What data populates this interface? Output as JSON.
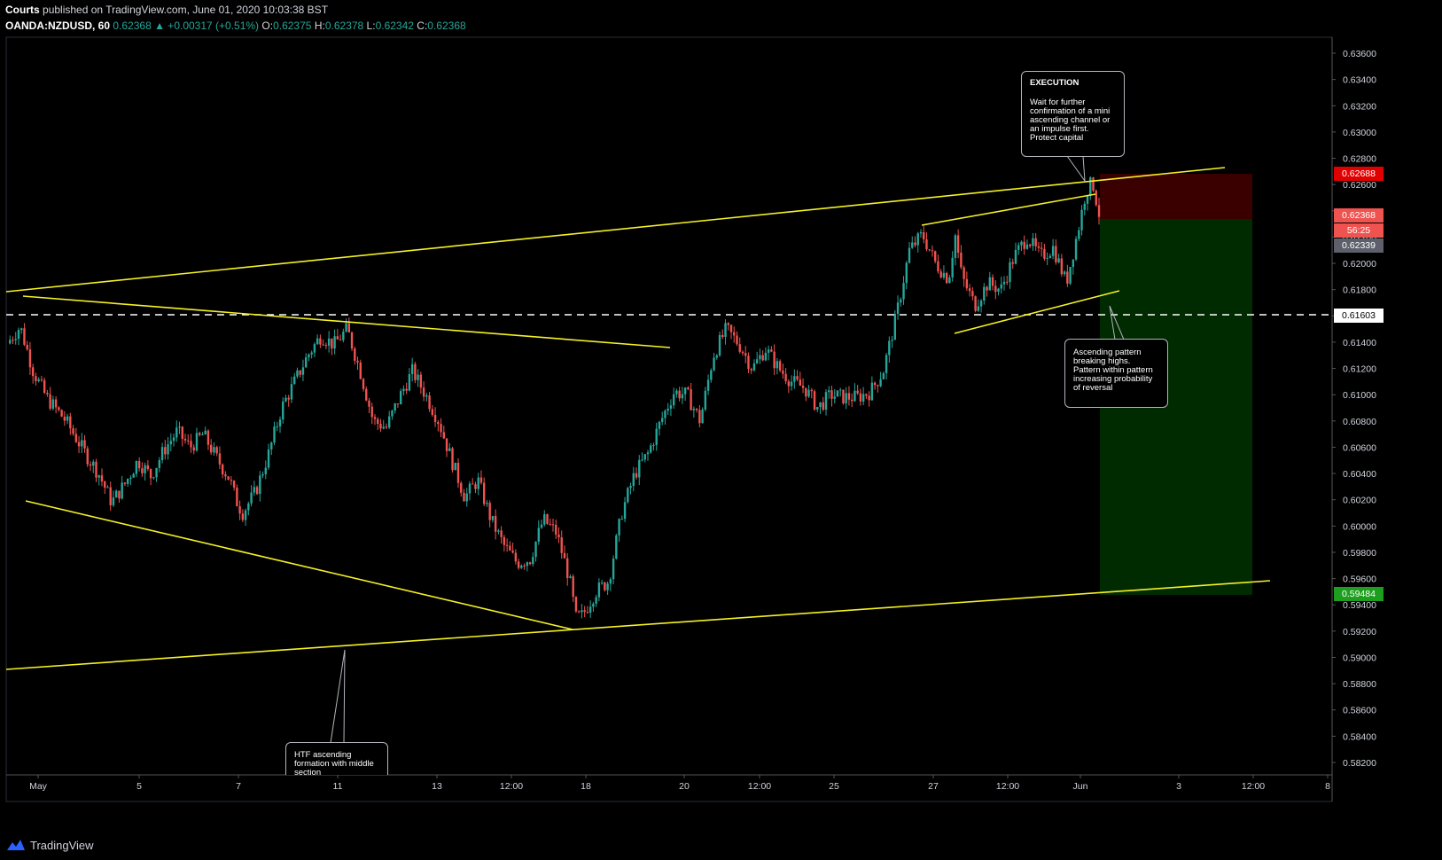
{
  "header": {
    "author": "Courts",
    "published": "published on TradingView.com, June 01, 2020 10:03:38 BST",
    "symbol": "OANDA:NZDUSD, 60",
    "last": "0.62368",
    "change": "▲ +0.00317 (+0.51%)",
    "o_label": "O:",
    "o": "0.62375",
    "h_label": "H:",
    "h": "0.62378",
    "l_label": "L:",
    "l": "0.62342",
    "c_label": "C:",
    "c": "0.62368"
  },
  "footer": {
    "brand": "TradingView"
  },
  "notes": {
    "execution_title": "EXECUTION",
    "execution_body": "Wait for further confirmation of a mini ascending channel or an impulse first. Protect capital",
    "pattern_body": "Ascending pattern breaking highs. Pattern within pattern increasing probability of reversal",
    "htf_body": "HTF ascending formation with middle section"
  },
  "price_tags": {
    "stop": "0.62688",
    "current": "0.62368",
    "countdown": "56:25",
    "prev": "0.62339",
    "level": "0.61603",
    "target": "0.59484"
  },
  "colors": {
    "up": "#26a69a",
    "down": "#ef5350",
    "trend": "#f5f125",
    "stop_zone": "#3a0000",
    "target_zone": "#002a00"
  },
  "chart_data": {
    "type": "candlestick",
    "title": "",
    "y_ticks": [
      "0.63600",
      "0.63400",
      "0.63200",
      "0.63000",
      "0.62800",
      "0.62600",
      "0.62400",
      "0.62200",
      "0.62000",
      "0.61800",
      "0.61600",
      "0.61400",
      "0.61200",
      "0.61000",
      "0.60800",
      "0.60600",
      "0.60400",
      "0.60200",
      "0.60000",
      "0.59800",
      "0.59600",
      "0.59400",
      "0.59200",
      "0.59000",
      "0.58800",
      "0.58600",
      "0.58400",
      "0.58200"
    ],
    "ylim": [
      0.5812,
      0.6375
    ],
    "x_ticks": [
      "May",
      "5",
      "7",
      "11",
      "13",
      "12:00",
      "18",
      "20",
      "12:00",
      "25",
      "27",
      "12:00",
      "Jun",
      "3",
      "12:00",
      "8"
    ],
    "close_path": [
      [
        0,
        0.6139
      ],
      [
        0.01,
        0.6152
      ],
      [
        0.02,
        0.6118
      ],
      [
        0.03,
        0.6098
      ],
      [
        0.045,
        0.608
      ],
      [
        0.06,
        0.6055
      ],
      [
        0.07,
        0.604
      ],
      [
        0.08,
        0.6018
      ],
      [
        0.09,
        0.6032
      ],
      [
        0.1,
        0.605
      ],
      [
        0.11,
        0.6038
      ],
      [
        0.12,
        0.6058
      ],
      [
        0.13,
        0.6072
      ],
      [
        0.14,
        0.606
      ],
      [
        0.15,
        0.607
      ],
      [
        0.16,
        0.6052
      ],
      [
        0.17,
        0.6036
      ],
      [
        0.175,
        0.602
      ],
      [
        0.18,
        0.601
      ],
      [
        0.19,
        0.6026
      ],
      [
        0.2,
        0.6055
      ],
      [
        0.21,
        0.609
      ],
      [
        0.22,
        0.611
      ],
      [
        0.23,
        0.613
      ],
      [
        0.24,
        0.6145
      ],
      [
        0.25,
        0.6138
      ],
      [
        0.26,
        0.615
      ],
      [
        0.27,
        0.6118
      ],
      [
        0.28,
        0.608
      ],
      [
        0.29,
        0.6075
      ],
      [
        0.3,
        0.6098
      ],
      [
        0.31,
        0.6118
      ],
      [
        0.32,
        0.61
      ],
      [
        0.33,
        0.608
      ],
      [
        0.34,
        0.605
      ],
      [
        0.35,
        0.6022
      ],
      [
        0.36,
        0.6035
      ],
      [
        0.37,
        0.6005
      ],
      [
        0.38,
        0.5985
      ],
      [
        0.39,
        0.5972
      ],
      [
        0.4,
        0.5975
      ],
      [
        0.41,
        0.6005
      ],
      [
        0.42,
        0.5995
      ],
      [
        0.43,
        0.596
      ],
      [
        0.435,
        0.593
      ],
      [
        0.44,
        0.5932
      ],
      [
        0.45,
        0.595
      ],
      [
        0.46,
        0.5958
      ],
      [
        0.47,
        0.601
      ],
      [
        0.48,
        0.604
      ],
      [
        0.49,
        0.6055
      ],
      [
        0.5,
        0.608
      ],
      [
        0.51,
        0.6102
      ],
      [
        0.52,
        0.61
      ],
      [
        0.53,
        0.608
      ],
      [
        0.54,
        0.613
      ],
      [
        0.55,
        0.615
      ],
      [
        0.56,
        0.6138
      ],
      [
        0.57,
        0.612
      ],
      [
        0.58,
        0.6135
      ],
      [
        0.59,
        0.612
      ],
      [
        0.6,
        0.611
      ],
      [
        0.61,
        0.6105
      ],
      [
        0.62,
        0.609
      ],
      [
        0.63,
        0.61
      ],
      [
        0.64,
        0.6098
      ],
      [
        0.65,
        0.6098
      ],
      [
        0.66,
        0.6102
      ],
      [
        0.67,
        0.6118
      ],
      [
        0.68,
        0.616
      ],
      [
        0.69,
        0.621
      ],
      [
        0.7,
        0.6222
      ],
      [
        0.71,
        0.62
      ],
      [
        0.72,
        0.6188
      ],
      [
        0.725,
        0.6222
      ],
      [
        0.73,
        0.619
      ],
      [
        0.74,
        0.6168
      ],
      [
        0.75,
        0.6185
      ],
      [
        0.76,
        0.618
      ],
      [
        0.77,
        0.6205
      ],
      [
        0.78,
        0.622
      ],
      [
        0.79,
        0.6205
      ],
      [
        0.8,
        0.6212
      ],
      [
        0.81,
        0.6185
      ],
      [
        0.82,
        0.623
      ],
      [
        0.825,
        0.6255
      ],
      [
        0.83,
        0.6262
      ],
      [
        0.835,
        0.6238
      ]
    ]
  }
}
